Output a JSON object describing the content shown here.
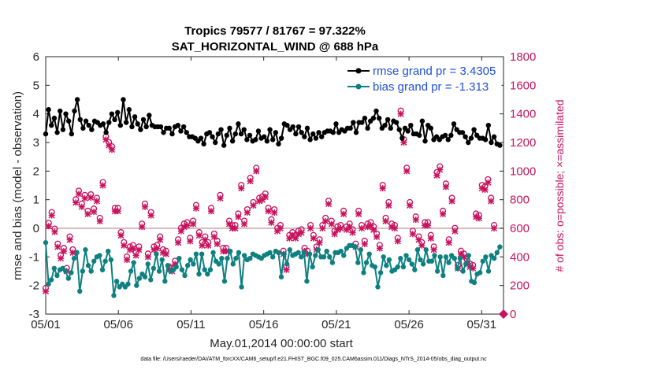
{
  "chart_data": {
    "type": "line",
    "title_line1": "Tropics 79577 / 81767 = 97.322%",
    "title_line2": "SAT_HORIZONTAL_WIND @ 688 hPa",
    "xlabel": "May.01,2014 00:00:00 start",
    "ylabel_left": "rmse and bias (model - observation)",
    "ylabel_right": "# of obs: o=possible; ×=assimilated",
    "footer": "data file: /Users/raeder/DAI/ATM_forcXX/CAM6_setup/f.e21.FHIST_BGC.f09_025.CAM6assim.011/Diags_NTrS_2014-05/obs_diag_output.nc",
    "x_ticks": [
      "05/01",
      "05/06",
      "05/11",
      "05/16",
      "05/21",
      "05/26",
      "05/31"
    ],
    "x_tick_days": [
      0,
      5,
      10,
      15,
      20,
      25,
      30
    ],
    "xlim_days": [
      0,
      31.5
    ],
    "ylim_left": [
      -3,
      6
    ],
    "ylim_right": [
      0,
      1800
    ],
    "y_ticks_left": [
      "-3",
      "-2",
      "-1",
      "0",
      "1",
      "2",
      "3",
      "4",
      "5",
      "6"
    ],
    "y_ticks_right": [
      "0",
      "200",
      "400",
      "600",
      "800",
      "1000",
      "1200",
      "1400",
      "1600",
      "1800"
    ],
    "colors": {
      "rmse": "#000000",
      "bias": "#0f8080",
      "obs": "#c8135e",
      "zero_line": "#c8a8a8",
      "legend_text": "#1f4fd6"
    },
    "series": [
      {
        "name": "rmse grand pr = 3.4305",
        "axis": "left",
        "values": [
          3.3,
          4.15,
          3.6,
          3.85,
          3.35,
          4.1,
          3.45,
          4.0,
          3.75,
          3.3,
          4.1,
          4.5,
          3.8,
          3.5,
          3.75,
          3.6,
          3.45,
          3.75,
          3.7,
          3.6,
          3.65,
          3.35,
          3.7,
          4.0,
          3.8,
          4.05,
          3.6,
          4.5,
          3.7,
          4.15,
          3.55,
          3.9,
          3.65,
          3.45,
          3.8,
          3.55,
          3.95,
          3.6,
          3.55,
          3.55,
          3.55,
          3.35,
          3.5,
          3.5,
          3.3,
          3.55,
          3.6,
          3.4,
          3.55,
          3.35,
          3.2,
          3.2,
          3.15,
          3.05,
          3.15,
          2.95,
          3.3,
          3.35,
          3.2,
          3.0,
          3.3,
          3.45,
          2.9,
          3.25,
          3.5,
          3.05,
          3.3,
          3.65,
          3.3,
          3.45,
          3.1,
          3.25,
          3.05,
          3.1,
          3.4,
          3.15,
          3.2,
          3.05,
          3.45,
          3.1,
          3.35,
          2.95,
          3.15,
          3.65,
          3.6,
          3.45,
          3.55,
          3.3,
          3.55,
          3.35,
          3.2,
          3.5,
          3.1,
          3.3,
          3.15,
          3.35,
          3.2,
          3.35,
          3.4,
          3.4,
          3.35,
          3.65,
          3.35,
          3.45,
          3.4,
          3.5,
          3.5,
          3.7,
          3.35,
          3.7,
          3.7,
          3.85,
          3.5,
          3.75,
          3.85,
          4.1,
          3.85,
          3.5,
          3.6,
          3.8,
          3.5,
          3.75,
          3.7,
          3.45,
          3.15,
          3.5,
          3.4,
          3.6,
          3.3,
          3.3,
          3.25,
          3.75,
          3.05,
          3.6,
          3.5,
          3.1,
          3.2,
          3.1,
          3.2,
          3.25,
          3.1,
          3.25,
          3.65,
          3.45,
          3.35,
          3.35,
          3.2,
          3.0,
          3.15,
          3.45,
          3.25,
          3.15,
          3.15,
          3.1,
          3.6,
          3.0,
          3.2,
          2.95,
          2.9
        ],
        "marker": "filled-circle"
      },
      {
        "name": "bias grand pr = -1.313",
        "axis": "left",
        "values": [
          -0.5,
          -1.95,
          -1.8,
          -1.4,
          -1.65,
          -1.45,
          -1.4,
          -1.5,
          -1.75,
          -1.55,
          -1.05,
          -0.85,
          -2.2,
          -1.5,
          -0.75,
          -1.3,
          -1.5,
          -1.15,
          -1.0,
          -0.95,
          -1.45,
          -1.15,
          -0.8,
          -1.1,
          -2.35,
          -1.85,
          -2.05,
          -1.95,
          -2.05,
          -1.95,
          -1.5,
          -1.2,
          -2.0,
          -1.75,
          -1.6,
          -1.7,
          -1.25,
          -1.8,
          -1.4,
          -0.9,
          -1.5,
          -1.1,
          -1.85,
          -1.3,
          -1.5,
          -1.45,
          -1.35,
          -1.05,
          -1.45,
          -1.65,
          -1.3,
          -1.1,
          -1.25,
          -0.9,
          -1.6,
          -0.9,
          -1.45,
          -1.6,
          -1.45,
          -0.85,
          -1.15,
          -1.25,
          -1.05,
          -1.85,
          -1.05,
          -0.8,
          -1.25,
          -1.05,
          -0.85,
          -2.05,
          -0.95,
          -1.1,
          -1.05,
          -0.9,
          -0.95,
          -1.0,
          -1.05,
          -0.95,
          -0.9,
          -0.85,
          -1.0,
          -0.8,
          -0.85,
          -1.7,
          -0.9,
          -1.25,
          -0.75,
          -0.95,
          -0.9,
          -0.85,
          -1.0,
          -0.85,
          -1.85,
          -0.9,
          -1.35,
          -0.95,
          -0.75,
          -1.0,
          -1.0,
          -0.8,
          -1.0,
          -1.2,
          -0.85,
          -0.85,
          -0.8,
          -0.95,
          -0.7,
          -0.6,
          -0.6,
          -0.65,
          -1.2,
          -0.75,
          -1.55,
          -1.2,
          -0.9,
          -1.3,
          -1.35,
          -2.05,
          -1.55,
          -1.0,
          -1.3,
          -1.1,
          -1.5,
          -1.45,
          -1.35,
          -1.05,
          -1.35,
          -0.95,
          -1.1,
          -1.25,
          -1.45,
          -0.75,
          -1.1,
          -1.25,
          -0.75,
          -1.15,
          -1.15,
          -0.95,
          -1.5,
          -1.0,
          -1.65,
          -1.0,
          -1.2,
          -0.95,
          -1.05,
          -1.4,
          -1.05,
          -1.5,
          -1.25,
          -0.95,
          -1.85,
          -1.9,
          -1.6,
          -1.55,
          -1.15,
          -1.0,
          -1.5,
          -0.95,
          -1.05,
          -0.85,
          -0.65
        ],
        "marker": "filled-circle"
      },
      {
        "name": "# of obs possible",
        "axis": "right",
        "marker": "o",
        "values": [
          160,
          615,
          690,
          575,
          470,
          390,
          440,
          300,
          520,
          430,
          780,
          840,
          750,
          810,
          700,
          815,
          715,
          790,
          650,
          900,
          1220,
          1180,
          1150,
          720,
          720,
          550,
          480,
          380,
          450,
          460,
          410,
          450,
          610,
          750,
          400,
          690,
          450,
          460,
          520,
          430,
          420,
          310,
          300,
          350,
          500,
          580,
          610,
          620,
          510,
          630,
          740,
          550,
          480,
          520,
          480,
          720,
          540,
          490,
          810,
          440,
          440,
          630,
          600,
          600,
          680,
          880,
          630,
          710,
          930,
          760,
          1000,
          790,
          800,
          820,
          720,
          640,
          710,
          580,
          600,
          420,
          310,
          530,
          550,
          530,
          560,
          570,
          440,
          420,
          600,
          530,
          450,
          500,
          600,
          650,
          770,
          630,
          560,
          590,
          600,
          700,
          590,
          610,
          570,
          470,
          700,
          600,
          490,
          610,
          620,
          590,
          540,
          460,
          880,
          650,
          760,
          610,
          600,
          510,
          1400,
          1200,
          1000,
          760,
          560,
          660,
          520,
          480,
          620,
          620,
          530,
          450,
          970,
          1010,
          700,
          890,
          500,
          790,
          580,
          320,
          420,
          400,
          360,
          330,
          320,
          680,
          670,
          880,
          870,
          920,
          790,
          600
        ],
        "note": "dates span May 1 to May 31"
      }
    ]
  }
}
